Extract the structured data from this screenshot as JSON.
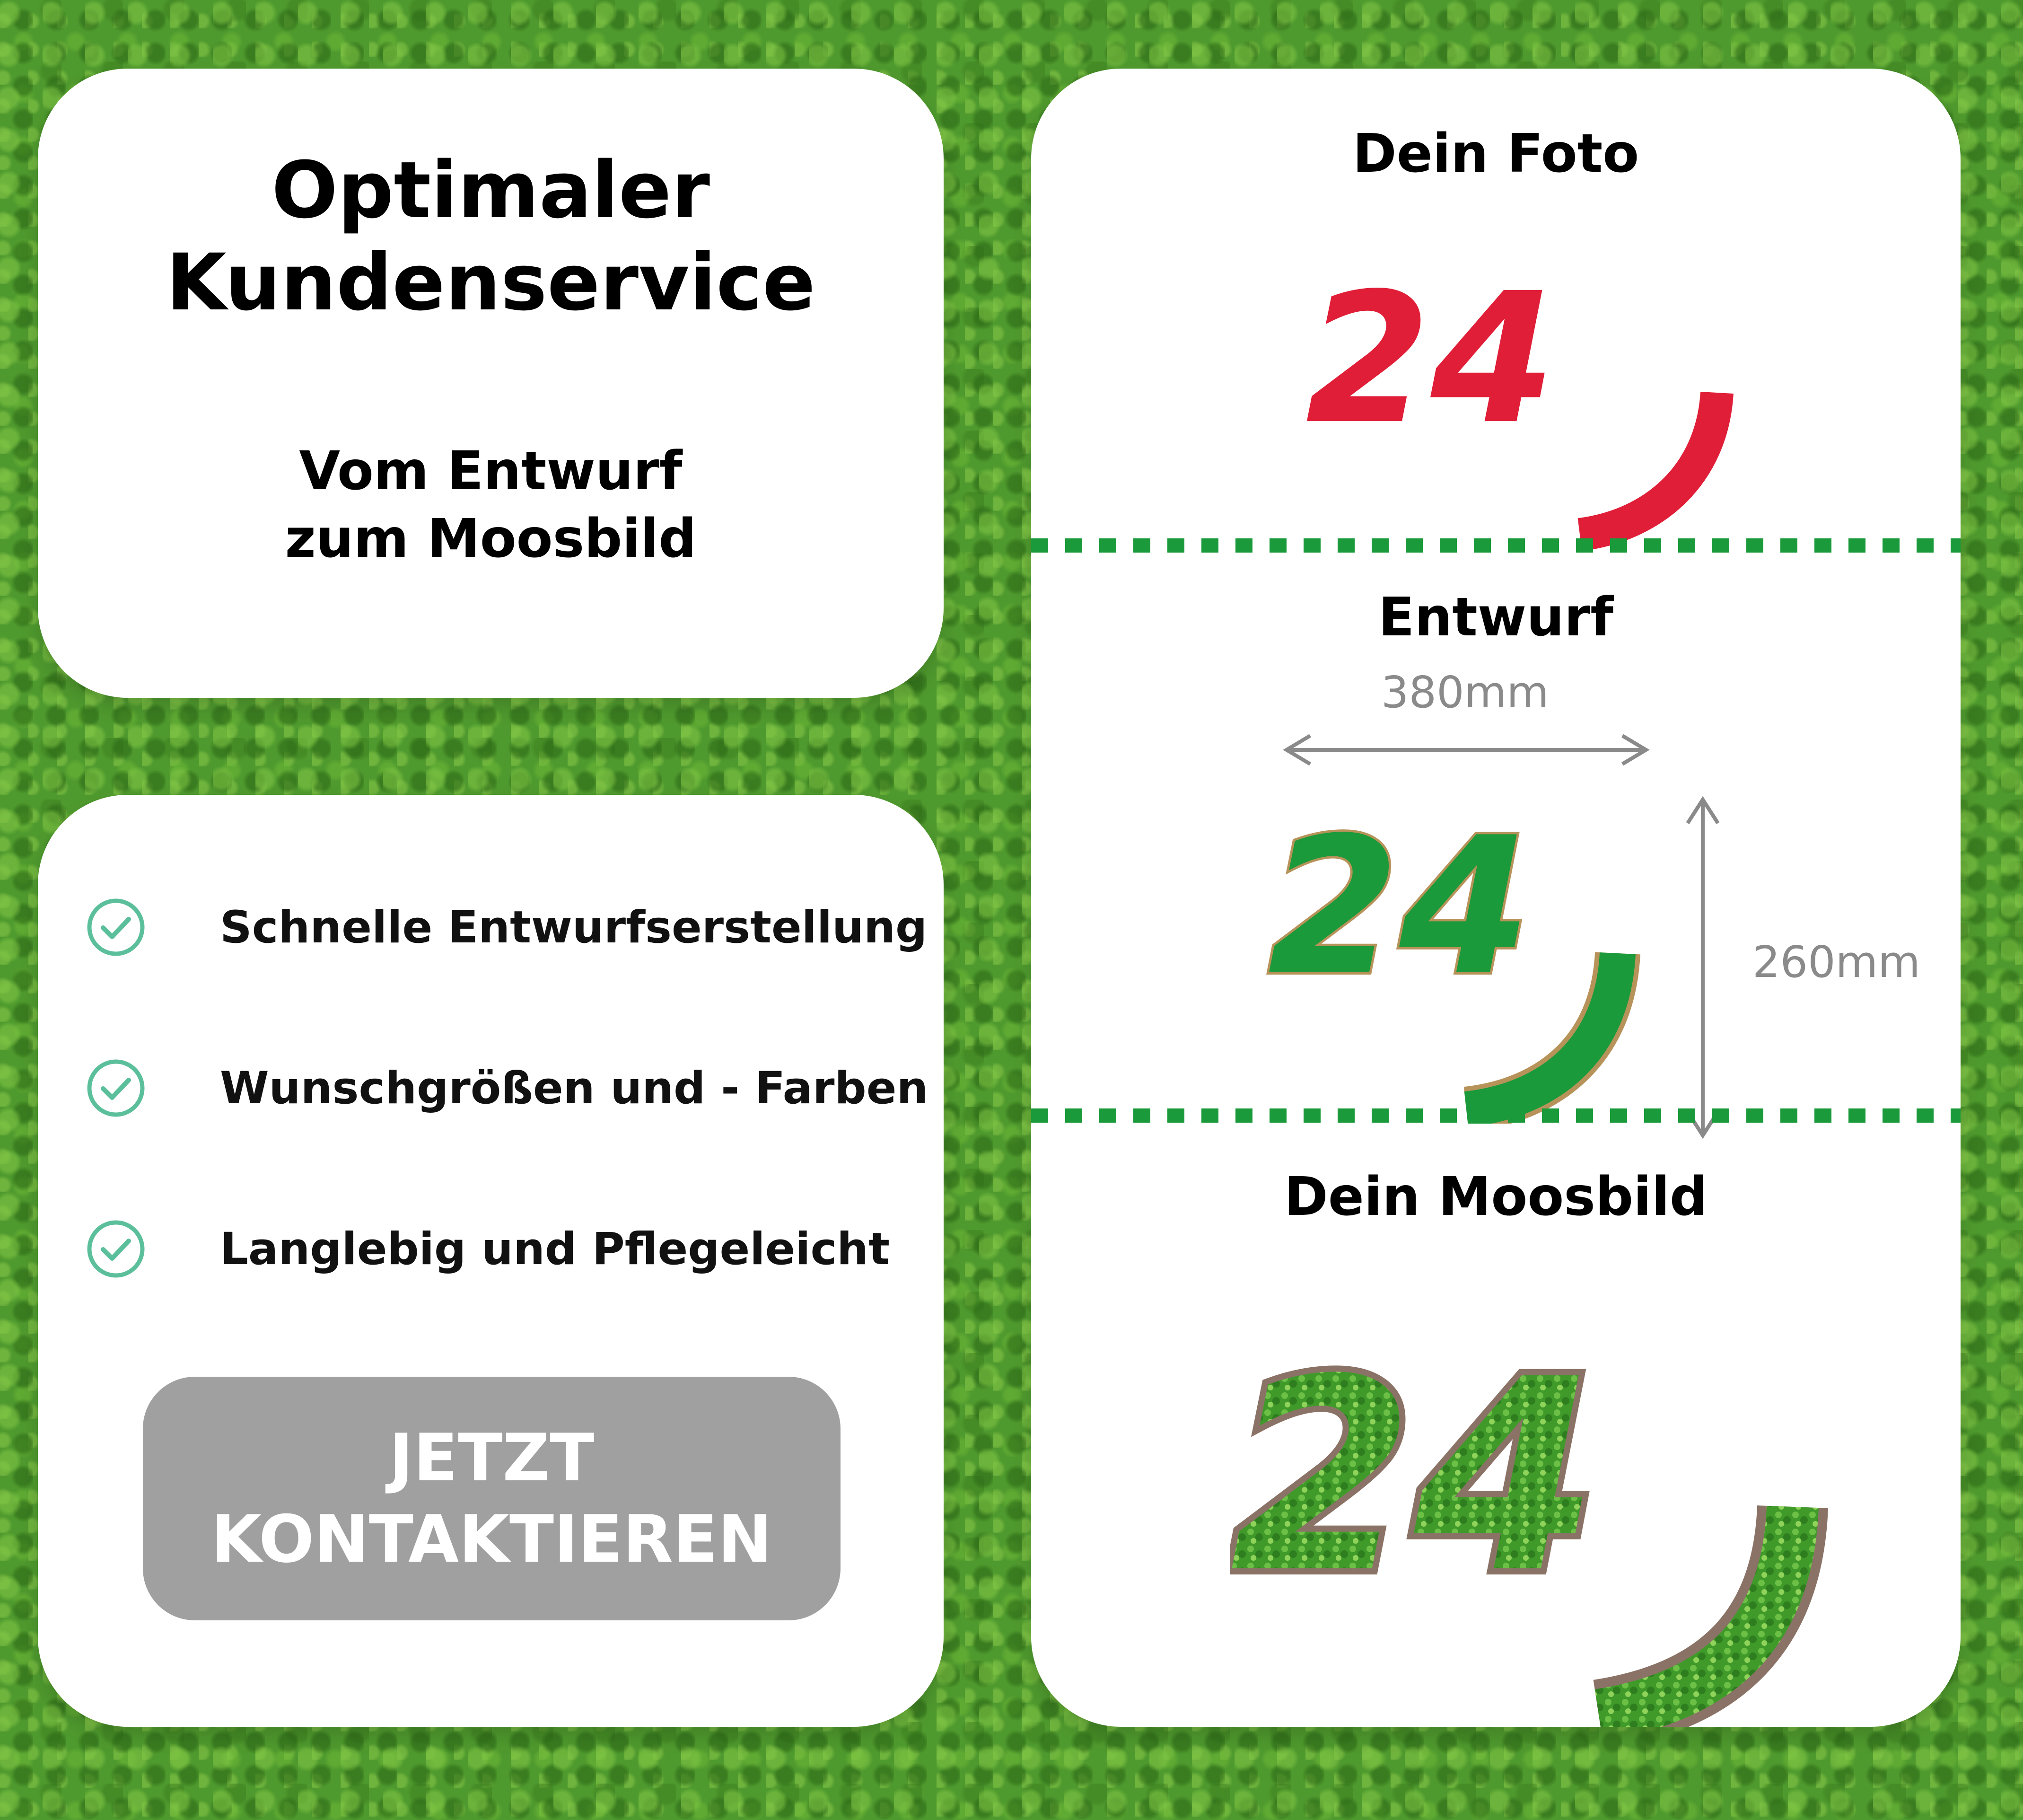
{
  "title_card": {
    "headline": "Optimaler\nKundenservice",
    "subline": "Vom Entwurf\nzum Moosbild"
  },
  "features": {
    "items": [
      {
        "label": "Schnelle Entwurfserstellung",
        "icon": "check-circle-icon"
      },
      {
        "label": "Wunschgrößen und - Farben",
        "icon": "check-circle-icon"
      },
      {
        "label": "Langlebig und Pflegeleicht",
        "icon": "check-circle-icon"
      }
    ],
    "button_label": "JETZT\nKONTAKTIEREN"
  },
  "process": {
    "photo_title": "Dein Foto",
    "photo_logo_text": "24",
    "draft_title": "Entwurf",
    "draft_logo_text": "24",
    "width_label": "380mm",
    "height_label": "260mm",
    "moss_title": "Dein Moosbild",
    "moss_logo_text": "24"
  },
  "colors": {
    "accent_green": "#1a9a3a",
    "divider_green": "#1a9a3a",
    "logo_red": "#e01e37",
    "check_teal": "#5cbf9c",
    "button_gray": "#a0a0a0",
    "outline_gold": "#b7935a",
    "moss_frame": "#8a7366"
  }
}
